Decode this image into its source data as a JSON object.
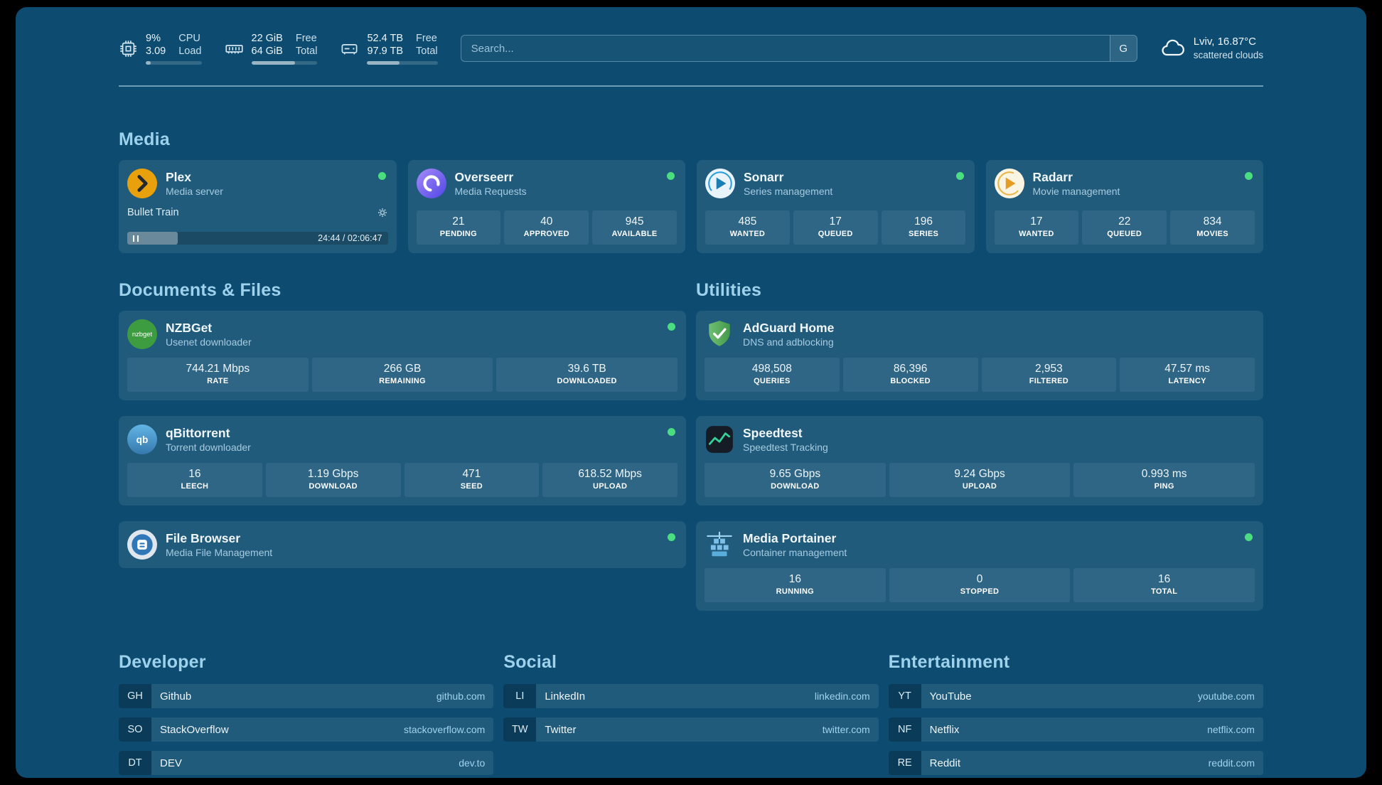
{
  "topbar": {
    "cpu": {
      "values": [
        "9%",
        "3.09"
      ],
      "labels": [
        "CPU",
        "Load"
      ],
      "percent": 9
    },
    "memory": {
      "values": [
        "22 GiB",
        "64 GiB"
      ],
      "labels": [
        "Free",
        "Total"
      ],
      "percent": 66
    },
    "disk": {
      "values": [
        "52.4 TB",
        "97.9 TB"
      ],
      "labels": [
        "Free",
        "Total"
      ],
      "percent": 46
    },
    "search": {
      "placeholder": "Search...",
      "button": "G"
    },
    "weather": {
      "line1": "Lviv, 16.87°C",
      "line2": "scattered clouds"
    }
  },
  "media": {
    "heading": "Media",
    "plex": {
      "title": "Plex",
      "subtitle": "Media server",
      "now_playing": "Bullet Train",
      "time": "24:44 / 02:06:47",
      "progress_percent": 19.5
    },
    "overseerr": {
      "title": "Overseerr",
      "subtitle": "Media Requests",
      "stats": [
        {
          "value": "21",
          "label": "PENDING"
        },
        {
          "value": "40",
          "label": "APPROVED"
        },
        {
          "value": "945",
          "label": "AVAILABLE"
        }
      ]
    },
    "sonarr": {
      "title": "Sonarr",
      "subtitle": "Series management",
      "stats": [
        {
          "value": "485",
          "label": "WANTED"
        },
        {
          "value": "17",
          "label": "QUEUED"
        },
        {
          "value": "196",
          "label": "SERIES"
        }
      ]
    },
    "radarr": {
      "title": "Radarr",
      "subtitle": "Movie management",
      "stats": [
        {
          "value": "17",
          "label": "WANTED"
        },
        {
          "value": "22",
          "label": "QUEUED"
        },
        {
          "value": "834",
          "label": "MOVIES"
        }
      ]
    }
  },
  "documents": {
    "heading": "Documents & Files",
    "nzbget": {
      "title": "NZBGet",
      "subtitle": "Usenet downloader",
      "icon_text": "nzbget",
      "stats": [
        {
          "value": "744.21 Mbps",
          "label": "RATE"
        },
        {
          "value": "266 GB",
          "label": "REMAINING"
        },
        {
          "value": "39.6 TB",
          "label": "DOWNLOADED"
        }
      ]
    },
    "qbittorrent": {
      "title": "qBittorrent",
      "subtitle": "Torrent downloader",
      "icon_text": "qb",
      "stats": [
        {
          "value": "16",
          "label": "LEECH"
        },
        {
          "value": "1.19 Gbps",
          "label": "DOWNLOAD"
        },
        {
          "value": "471",
          "label": "SEED"
        },
        {
          "value": "618.52 Mbps",
          "label": "UPLOAD"
        }
      ]
    },
    "filebrowser": {
      "title": "File Browser",
      "subtitle": "Media File Management"
    }
  },
  "utilities": {
    "heading": "Utilities",
    "adguard": {
      "title": "AdGuard Home",
      "subtitle": "DNS and adblocking",
      "stats": [
        {
          "value": "498,508",
          "label": "QUERIES"
        },
        {
          "value": "86,396",
          "label": "BLOCKED"
        },
        {
          "value": "2,953",
          "label": "FILTERED"
        },
        {
          "value": "47.57 ms",
          "label": "LATENCY"
        }
      ]
    },
    "speedtest": {
      "title": "Speedtest",
      "subtitle": "Speedtest Tracking",
      "stats": [
        {
          "value": "9.65 Gbps",
          "label": "DOWNLOAD"
        },
        {
          "value": "9.24 Gbps",
          "label": "UPLOAD"
        },
        {
          "value": "0.993 ms",
          "label": "PING"
        }
      ]
    },
    "portainer": {
      "title": "Media Portainer",
      "subtitle": "Container management",
      "stats": [
        {
          "value": "16",
          "label": "RUNNING"
        },
        {
          "value": "0",
          "label": "STOPPED"
        },
        {
          "value": "16",
          "label": "TOTAL"
        }
      ]
    }
  },
  "bookmarks": {
    "developer": {
      "heading": "Developer",
      "items": [
        {
          "abbr": "GH",
          "name": "Github",
          "domain": "github.com"
        },
        {
          "abbr": "SO",
          "name": "StackOverflow",
          "domain": "stackoverflow.com"
        },
        {
          "abbr": "DT",
          "name": "DEV",
          "domain": "dev.to"
        }
      ]
    },
    "social": {
      "heading": "Social",
      "items": [
        {
          "abbr": "LI",
          "name": "LinkedIn",
          "domain": "linkedin.com"
        },
        {
          "abbr": "TW",
          "name": "Twitter",
          "domain": "twitter.com"
        }
      ]
    },
    "entertainment": {
      "heading": "Entertainment",
      "items": [
        {
          "abbr": "YT",
          "name": "YouTube",
          "domain": "youtube.com"
        },
        {
          "abbr": "NF",
          "name": "Netflix",
          "domain": "netflix.com"
        },
        {
          "abbr": "RE",
          "name": "Reddit",
          "domain": "reddit.com"
        }
      ]
    }
  }
}
